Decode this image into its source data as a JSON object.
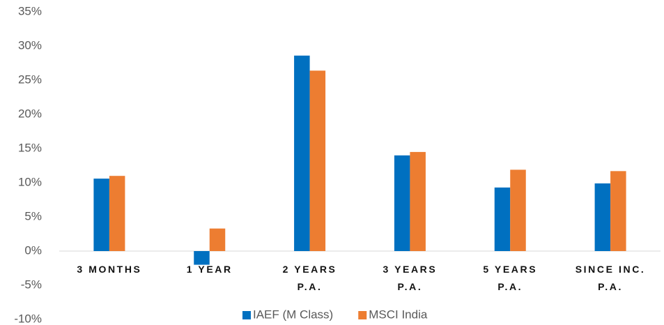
{
  "chart_data": {
    "type": "bar",
    "categories": [
      "3 MONTHS",
      "1 YEAR",
      "2 YEARS\nP.A.",
      "3 YEARS\nP.A.",
      "5 YEARS\nP.A.",
      "SINCE INC.\nP.A."
    ],
    "series": [
      {
        "name": "IAEF (M Class)",
        "color": "#0070c0",
        "values": [
          10.6,
          -2.0,
          28.6,
          14.0,
          9.3,
          9.9
        ]
      },
      {
        "name": "MSCI India",
        "color": "#ed7d31",
        "values": [
          11.0,
          3.3,
          26.4,
          14.5,
          11.9,
          11.7
        ]
      }
    ],
    "ylim": [
      -10,
      35
    ],
    "yticks": [
      {
        "value": -10,
        "label": "-10%"
      },
      {
        "value": -5,
        "label": "-5%"
      },
      {
        "value": 0,
        "label": "0%"
      },
      {
        "value": 5,
        "label": "5%"
      },
      {
        "value": 10,
        "label": "10%"
      },
      {
        "value": 15,
        "label": "15%"
      },
      {
        "value": 20,
        "label": "20%"
      },
      {
        "value": 25,
        "label": "25%"
      },
      {
        "value": 30,
        "label": "30%"
      },
      {
        "value": 35,
        "label": "35%"
      }
    ],
    "grid": false,
    "legend": "bottom"
  }
}
